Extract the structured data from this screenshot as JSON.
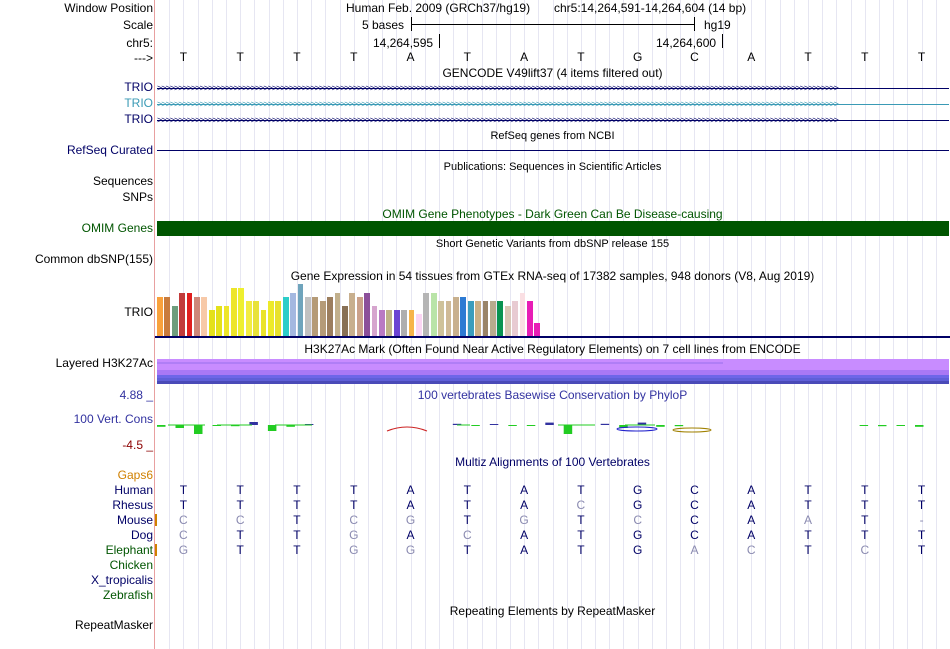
{
  "labels": {
    "window_position": "Window Position",
    "scale": "Scale",
    "chr": "chr5:",
    "arrow": "--->",
    "trio1": "TRIO",
    "trio2": "TRIO",
    "trio3": "TRIO",
    "refseq": "RefSeq Curated",
    "sequences": "Sequences",
    "snps": "SNPs",
    "omim": "OMIM Genes",
    "common_dbsnp": "Common dbSNP(155)",
    "gtex_trio": "TRIO",
    "layered": "Layered H3K27Ac",
    "phylop_max": "4.88 _",
    "phylop": "100 Vert. Cons",
    "phylop_min": "-4.5 _",
    "gaps": "Gaps6",
    "species": [
      "Human",
      "Rhesus",
      "Mouse",
      "Dog",
      "Elephant",
      "Chicken",
      "X_tropicalis",
      "Zebrafish"
    ],
    "repeatmasker": "RepeatMasker"
  },
  "header": {
    "assembly": "Human Feb. 2009 (GRCh37/hg19)",
    "position": "chr5:14,264,591-14,264,604 (14 bp)",
    "scale_bases": "5 bases",
    "scale_db": "hg19",
    "coord1": "14,264,595",
    "coord2": "14,264,600"
  },
  "sequence": [
    "T",
    "T",
    "T",
    "T",
    "A",
    "T",
    "A",
    "T",
    "G",
    "C",
    "A",
    "T",
    "T",
    "T"
  ],
  "tracks": {
    "gencode": "GENCODE V49lift37 (4 items filtered out)",
    "refseq": "RefSeq genes from NCBI",
    "publications": "Publications: Sequences in Scientific Articles",
    "omim": "OMIM Gene Phenotypes - Dark Green Can Be Disease-causing",
    "dbsnp": "Short Genetic Variants from dbSNP release 155",
    "gtex": "Gene Expression in 54 tissues from GTEx RNA-seq of 17382 samples, 948 donors (V8, Aug 2019)",
    "h3k27ac": "H3K27Ac Mark (Often Found Near Active Regulatory Elements) on 7 cell lines from ENCODE",
    "phylop": "100 vertebrates Basewise Conservation by PhyloP",
    "multiz": "Multiz Alignments of 100 Vertebrates",
    "repeats": "Repeating Elements by RepeatMasker"
  },
  "alignment": {
    "Human": [
      "T",
      "T",
      "T",
      "T",
      "A",
      "T",
      "A",
      "T",
      "G",
      "C",
      "A",
      "T",
      "T",
      "T"
    ],
    "Rhesus": [
      "T",
      "T",
      "T",
      "T",
      "A",
      "T",
      "A",
      "C",
      "G",
      "C",
      "A",
      "T",
      "T",
      "T"
    ],
    "Mouse": [
      "C",
      "C",
      "T",
      "C",
      "G",
      "T",
      "G",
      "T",
      "C",
      "C",
      "A",
      "A",
      "T",
      "-"
    ],
    "Dog": [
      "C",
      "T",
      "T",
      "G",
      "A",
      "C",
      "A",
      "T",
      "G",
      "C",
      "A",
      "T",
      "T",
      "T"
    ],
    "Elephant": [
      "G",
      "T",
      "T",
      "G",
      "G",
      "T",
      "A",
      "T",
      "G",
      "A",
      "C",
      "T",
      "C",
      "T"
    ]
  },
  "gtex_values": [
    9,
    9,
    7,
    10,
    10,
    9,
    9,
    6,
    7,
    7,
    11,
    11,
    8,
    8,
    6,
    8,
    8,
    9,
    10,
    12,
    9,
    9,
    8,
    9,
    10,
    7,
    10,
    9,
    10,
    7,
    6,
    6,
    6,
    6,
    6,
    5,
    10,
    10,
    8,
    8,
    9,
    9,
    8,
    8,
    8,
    8,
    8,
    7,
    8,
    10,
    8,
    3
  ],
  "phylop_values": [
    -0.3,
    -0.5,
    -1.5,
    -0.1,
    -0.2,
    0.5,
    -1.0,
    -0.3,
    0.1,
    0,
    0,
    0,
    0,
    0,
    0,
    0,
    0.2,
    -0.1,
    0.1,
    -0.1,
    -0.1,
    0.4,
    -1.5,
    0,
    0.2,
    -0.5,
    0.4,
    -0.3,
    -0.2,
    0,
    0,
    0,
    0,
    0,
    0,
    0,
    0,
    0,
    -0.1,
    -0.2,
    -0.1,
    -0.3,
    0
  ],
  "colors": {
    "label_navy": "#000066",
    "trio_teal": "#3a9ab5",
    "omim_green": "#005500",
    "phylop_blue": "#3232a0",
    "phylop_red": "#8c0000",
    "gaps_orange": "#d08000",
    "h3k27ac_top": "#c88cff",
    "h3k27ac_mid": "#a978f5",
    "gtex_palette": [
      "#f9a13c",
      "#c97b3c",
      "#6e9d7d",
      "#c23b3b",
      "#e01f1f",
      "#ce8779",
      "#f7c9a8",
      "#e4e11a",
      "#e4e11a",
      "#ede52a",
      "#ede52a",
      "#eeef2f",
      "#f2ec41",
      "#e8e23a",
      "#eae32c",
      "#edea29",
      "#e8e12c",
      "#2bcdc9",
      "#a4b8e0",
      "#6fa4bc",
      "#c1c1c1",
      "#b59b78",
      "#b59b78",
      "#9c7e5e",
      "#c2b08c",
      "#887055",
      "#c8af8e",
      "#cba18a",
      "#8c4f9a",
      "#d6a5ce",
      "#b97ac4",
      "#bfb288",
      "#6b43d3",
      "#aeaeae",
      "#f6b44a",
      "#fbd6f4",
      "#b5b5b5",
      "#b9e4a8",
      "#cfc29a",
      "#cfba97",
      "#c8b08e",
      "#2d7ad3",
      "#3b9dbd",
      "#cbb086",
      "#9a8468",
      "#b9ab8e",
      "#0a9351",
      "#d9c6b5",
      "#e8cbd2",
      "#fadfe3",
      "#e81db6",
      "#e81db6"
    ]
  }
}
